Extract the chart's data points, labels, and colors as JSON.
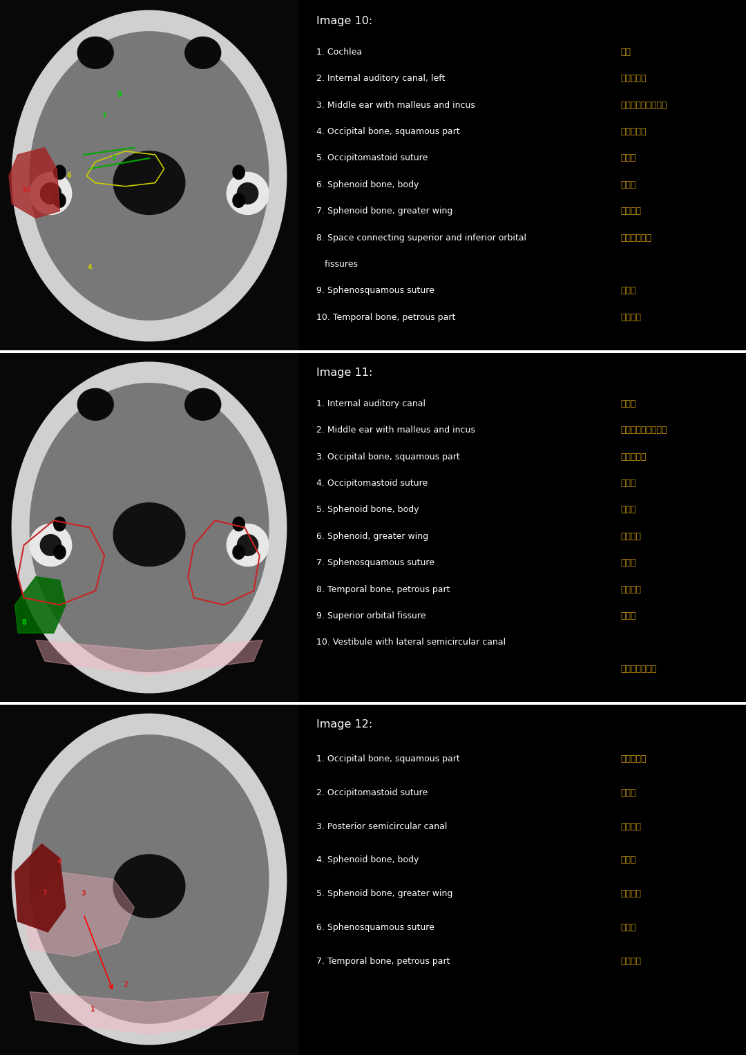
{
  "bg_color": "#000000",
  "white_color": "#ffffff",
  "gold_color": "#c8960c",
  "divider_color": "#555555",
  "panel1": {
    "title": "Image 10:",
    "items_en": [
      "1. Cochlea",
      "2. Internal auditory canal, left",
      "3. Middle ear with malleus and incus",
      "4. Occipital bone, squamous part",
      "5. Occipitomastoid suture",
      "6. Sphenoid bone, body",
      "7. Sphenoid bone, greater wing",
      "8. Space connecting superior and inferior orbital",
      "   fissures",
      "9. Sphenosquamous suture",
      "10. Temporal bone, petrous part"
    ],
    "items_cn": [
      "耳蜗",
      "内听道，左",
      "中耳内的锤骨与砧骨",
      "枚骨，鸞部",
      "枚乳缝",
      "蝶骨体",
      "蝶骨大翄",
      "上下眨裂间隙",
      "",
      "蝶鳞缝",
      "颜骨岩部"
    ],
    "cn_offsets": [
      0,
      0,
      0,
      0,
      0,
      0,
      0,
      0,
      -99,
      0,
      0
    ]
  },
  "panel2": {
    "title": "Image 11:",
    "items_en": [
      "1. Internal auditory canal",
      "2. Middle ear with malleus and incus",
      "3. Occipital bone, squamous part",
      "4. Occipitomastoid suture",
      "5. Sphenoid bone, body",
      "6. Sphenoid, greater wing",
      "7. Sphenosquamous suture",
      "8. Temporal bone, petrous part",
      "9. Superior orbital fissure",
      "10. Vestibule with lateral semicircular canal",
      ""
    ],
    "items_cn": [
      "内听道",
      "中耳内的锤骨与砧骨",
      "枚骨，鸞部",
      "枚乳缝",
      "蝶骨体",
      "蝶骨大翄",
      "蝶鳞缝",
      "颜骨岩部",
      "睜上裂",
      "",
      "外侧半规管前庭"
    ],
    "cn_offsets": [
      0,
      0,
      0,
      0,
      0,
      0,
      0,
      0,
      0,
      -99,
      0
    ]
  },
  "panel3": {
    "title": "Image 12:",
    "items_en": [
      "1. Occipital bone, squamous part",
      "2. Occipitomastoid suture",
      "3. Posterior semicircular canal",
      "4. Sphenoid bone, body",
      "5. Sphenoid bone, greater wing",
      "6. Sphenosquamous suture",
      "7. Temporal bone, petrous part"
    ],
    "items_cn": [
      "枚骨，鸞部",
      "枚乳缝",
      "后半规管",
      "蝶骨体",
      "蝶骨大翄",
      "蝶鳞缝",
      "颜骨岩部"
    ],
    "cn_offsets": [
      0,
      0,
      0,
      0,
      0,
      0,
      0
    ]
  }
}
